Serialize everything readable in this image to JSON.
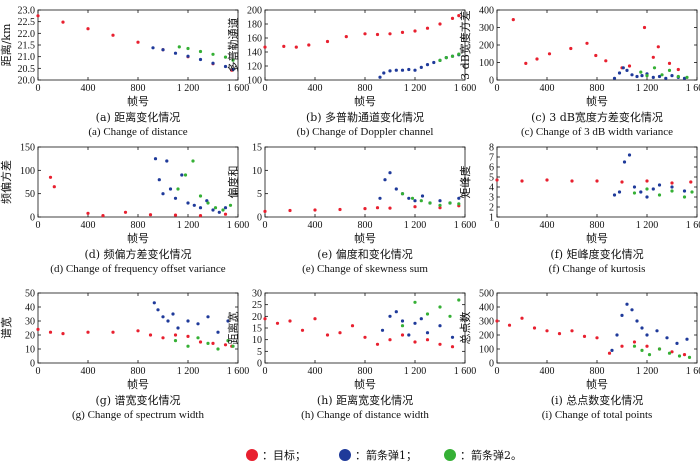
{
  "colors": {
    "target": "#e8202f",
    "rocket1": "#1f3a9a",
    "rocket2": "#35b035"
  },
  "legend": {
    "target": "：目标；",
    "rocket1": "：箭条弹1；",
    "rocket2": "：箭条弹2。"
  },
  "chart_data": [
    {
      "type": "scatter",
      "panel": "a",
      "ylabel": "距离/km",
      "xlabel": "帧号",
      "caption_cn": "(a) 距离变化情况",
      "caption_en": "(a) Change of distance",
      "xlim": [
        0,
        1600
      ],
      "xticks": [
        0,
        400,
        800,
        1200,
        1600
      ],
      "xticklabels": [
        "0",
        "400",
        "800",
        "1 200",
        "1 600"
      ],
      "ylim": [
        20,
        23
      ],
      "yticks": [
        20.0,
        20.5,
        21.0,
        21.5,
        22.0,
        22.5,
        23.0
      ],
      "yticklabels": [
        "20.0",
        "20.5",
        "21.0",
        "21.5",
        "22.0",
        "22.5",
        "23.0"
      ],
      "series": [
        {
          "key": "target",
          "x": [
            0,
            200,
            400,
            600,
            800,
            1000,
            1200,
            1400,
            1550
          ],
          "y": [
            22.75,
            22.48,
            22.2,
            21.92,
            21.62,
            21.3,
            21.0,
            20.7,
            20.42
          ]
        },
        {
          "key": "rocket1",
          "x": [
            920,
            1000,
            1100,
            1200,
            1300,
            1400,
            1500,
            1560
          ],
          "y": [
            21.38,
            21.3,
            21.15,
            21.02,
            20.88,
            20.72,
            20.58,
            20.45
          ]
        },
        {
          "key": "rocket2",
          "x": [
            1130,
            1200,
            1300,
            1400,
            1500,
            1560
          ],
          "y": [
            21.42,
            21.35,
            21.22,
            21.1,
            20.98,
            20.85
          ]
        }
      ]
    },
    {
      "type": "scatter",
      "panel": "b",
      "ylabel": "多普勒通道",
      "xlabel": "帧号",
      "caption_cn": "(b) 多普勒通道变化情况",
      "caption_en": "(b) Change of Doppler channel",
      "xlim": [
        0,
        1600
      ],
      "xticks": [
        0,
        400,
        800,
        1200,
        1600
      ],
      "xticklabels": [
        "0",
        "400",
        "800",
        "1 200",
        "1 600"
      ],
      "ylim": [
        100,
        200
      ],
      "yticks": [
        100,
        120,
        140,
        160,
        180,
        200
      ],
      "yticklabels": [
        "100",
        "120",
        "140",
        "160",
        "180",
        "200"
      ],
      "series": [
        {
          "key": "target",
          "x": [
            0,
            150,
            250,
            350,
            500,
            650,
            800,
            900,
            1000,
            1100,
            1200,
            1300,
            1400,
            1500,
            1550
          ],
          "y": [
            147,
            148,
            147,
            150,
            155,
            162,
            166,
            165,
            166,
            168,
            170,
            174,
            180,
            188,
            192
          ]
        },
        {
          "key": "rocket1",
          "x": [
            920,
            950,
            1000,
            1050,
            1100,
            1150,
            1200,
            1250,
            1300,
            1350,
            1400,
            1450,
            1500,
            1550
          ],
          "y": [
            104,
            110,
            113,
            114,
            114,
            115,
            114,
            118,
            122,
            125,
            128,
            132,
            134,
            136
          ]
        },
        {
          "key": "rocket2",
          "x": [
            1400,
            1450,
            1500,
            1550
          ],
          "y": [
            128,
            132,
            134,
            137
          ]
        }
      ]
    },
    {
      "type": "scatter",
      "panel": "c",
      "ylabel": "3 dB宽度方差",
      "xlabel": "帧号",
      "caption_cn": "(c) 3 dB宽度方差变化情况",
      "caption_en": "(c) Change of 3 dB width variance",
      "xlim": [
        0,
        1600
      ],
      "xticks": [
        0,
        400,
        800,
        1200,
        1600
      ],
      "xticklabels": [
        "0",
        "400",
        "800",
        "1 200",
        "1 600"
      ],
      "ylim": [
        0,
        400
      ],
      "yticks": [
        0,
        100,
        200,
        300,
        400
      ],
      "yticklabels": [
        "0",
        "100",
        "200",
        "300",
        "400"
      ],
      "series": [
        {
          "key": "target",
          "x": [
            130,
            230,
            320,
            420,
            590,
            720,
            790,
            870,
            1000,
            1060,
            1180,
            1250,
            1290,
            1380,
            1450
          ],
          "y": [
            345,
            95,
            120,
            150,
            180,
            210,
            140,
            110,
            70,
            80,
            300,
            130,
            190,
            95,
            60
          ]
        },
        {
          "key": "rocket1",
          "x": [
            940,
            980,
            1010,
            1040,
            1080,
            1120,
            1160,
            1200,
            1250,
            1300,
            1350,
            1400,
            1450,
            1500
          ],
          "y": [
            10,
            40,
            70,
            55,
            30,
            20,
            25,
            35,
            15,
            20,
            10,
            25,
            15,
            10
          ]
        },
        {
          "key": "rocket2",
          "x": [
            1150,
            1200,
            1260,
            1320,
            1380,
            1450,
            1520
          ],
          "y": [
            45,
            25,
            70,
            30,
            55,
            20,
            15
          ]
        }
      ]
    },
    {
      "type": "scatter",
      "panel": "d",
      "ylabel": "频偏方差",
      "xlabel": "帧号",
      "caption_cn": "(d) 频偏方差变化情况",
      "caption_en": "(d) Change of frequency offset variance",
      "xlim": [
        0,
        1600
      ],
      "xticks": [
        0,
        400,
        800,
        1200,
        1600
      ],
      "xticklabels": [
        "0",
        "400",
        "800",
        "1 200",
        "1 600"
      ],
      "ylim": [
        0,
        150
      ],
      "yticks": [
        0,
        50,
        100,
        150
      ],
      "yticklabels": [
        "0",
        "50",
        "100",
        "150"
      ],
      "series": [
        {
          "key": "target",
          "x": [
            100,
            130,
            400,
            520,
            700,
            900,
            1100,
            1300,
            1500
          ],
          "y": [
            85,
            65,
            8,
            3,
            10,
            5,
            4,
            3,
            6
          ]
        },
        {
          "key": "rocket1",
          "x": [
            940,
            970,
            1000,
            1030,
            1060,
            1100,
            1150,
            1200,
            1250,
            1300,
            1350,
            1400,
            1450,
            1500
          ],
          "y": [
            125,
            80,
            50,
            120,
            60,
            40,
            90,
            30,
            25,
            20,
            35,
            15,
            10,
            20
          ]
        },
        {
          "key": "rocket2",
          "x": [
            1120,
            1180,
            1240,
            1300,
            1360,
            1420,
            1480,
            1540
          ],
          "y": [
            60,
            90,
            120,
            45,
            30,
            20,
            15,
            25
          ]
        }
      ]
    },
    {
      "type": "scatter",
      "panel": "e",
      "ylabel": "偏度和",
      "xlabel": "帧号",
      "caption_cn": "(e) 偏度和变化情况",
      "caption_en": "(e) Change of skewness sum",
      "xlim": [
        0,
        1600
      ],
      "xticks": [
        0,
        400,
        800,
        1200,
        1600
      ],
      "xticklabels": [
        "0",
        "400",
        "800",
        "1 200",
        "1 600"
      ],
      "ylim": [
        0,
        15
      ],
      "yticks": [
        0,
        5,
        10,
        15
      ],
      "yticklabels": [
        "0",
        "5",
        "10",
        "15"
      ],
      "series": [
        {
          "key": "target",
          "x": [
            0,
            200,
            400,
            600,
            800,
            900,
            1000,
            1200,
            1400,
            1550
          ],
          "y": [
            1.2,
            1.4,
            1.5,
            1.6,
            1.8,
            2.0,
            1.9,
            2.2,
            2.0,
            2.4
          ]
        },
        {
          "key": "rocket1",
          "x": [
            920,
            960,
            1000,
            1050,
            1100,
            1150,
            1200,
            1260,
            1320,
            1400,
            1480,
            1550
          ],
          "y": [
            4,
            8,
            9.5,
            6,
            5,
            4,
            3.5,
            4.5,
            3,
            3.5,
            3,
            4
          ]
        },
        {
          "key": "rocket2",
          "x": [
            1100,
            1180,
            1250,
            1320,
            1400,
            1480,
            1550
          ],
          "y": [
            5,
            4,
            3.5,
            3,
            2.5,
            3,
            2.8
          ]
        }
      ]
    },
    {
      "type": "scatter",
      "panel": "f",
      "ylabel": "矩峰度",
      "xlabel": "帧号",
      "caption_cn": "(f) 矩峰度变化情况",
      "caption_en": "(f) Change of kurtosis",
      "xlim": [
        0,
        1600
      ],
      "xticks": [
        0,
        400,
        800,
        1200,
        1600
      ],
      "xticklabels": [
        "0",
        "400",
        "800",
        "1 200",
        "1 600"
      ],
      "ylim": [
        1,
        8
      ],
      "yticks": [
        1,
        2,
        3,
        4,
        5,
        6,
        7,
        8
      ],
      "yticklabels": [
        "1",
        "2",
        "3",
        "4",
        "5",
        "6",
        "7",
        "8"
      ],
      "series": [
        {
          "key": "target",
          "x": [
            0,
            200,
            400,
            600,
            800,
            1000,
            1200,
            1400,
            1550
          ],
          "y": [
            4.7,
            4.6,
            4.7,
            4.6,
            4.6,
            4.5,
            4.6,
            4.4,
            4.5
          ]
        },
        {
          "key": "rocket1",
          "x": [
            940,
            980,
            1020,
            1060,
            1100,
            1150,
            1200,
            1250,
            1300,
            1400,
            1500
          ],
          "y": [
            3.2,
            3.5,
            6.5,
            7.2,
            4.0,
            3.5,
            3.0,
            3.8,
            4.2,
            4.0,
            3.6
          ]
        },
        {
          "key": "rocket2",
          "x": [
            1100,
            1200,
            1300,
            1400,
            1500,
            1560
          ],
          "y": [
            3.4,
            3.8,
            3.2,
            3.6,
            3.0,
            3.5
          ]
        }
      ]
    },
    {
      "type": "scatter",
      "panel": "g",
      "ylabel": "谱宽",
      "xlabel": "帧号",
      "caption_cn": "(g) 谱宽变化情况",
      "caption_en": "(g) Change of spectrum width",
      "xlim": [
        0,
        1600
      ],
      "xticks": [
        0,
        400,
        800,
        1200,
        1600
      ],
      "xticklabels": [
        "0",
        "400",
        "800",
        "1 200",
        "1 600"
      ],
      "ylim": [
        0,
        50
      ],
      "yticks": [
        0,
        10,
        20,
        30,
        40,
        50
      ],
      "yticklabels": [
        "0",
        "10",
        "20",
        "30",
        "40",
        "50"
      ],
      "series": [
        {
          "key": "target",
          "x": [
            0,
            100,
            200,
            400,
            600,
            800,
            900,
            1000,
            1100,
            1200,
            1300,
            1400,
            1500,
            1550
          ],
          "y": [
            24,
            22,
            21,
            22,
            22,
            23,
            20,
            18,
            20,
            19,
            15,
            14,
            13,
            12
          ]
        },
        {
          "key": "rocket1",
          "x": [
            930,
            960,
            1000,
            1040,
            1080,
            1120,
            1200,
            1280,
            1360,
            1440,
            1520
          ],
          "y": [
            43,
            38,
            33,
            30,
            35,
            25,
            30,
            28,
            33,
            22,
            30
          ]
        },
        {
          "key": "rocket2",
          "x": [
            1100,
            1200,
            1280,
            1360,
            1440,
            1520,
            1560
          ],
          "y": [
            16,
            12,
            18,
            14,
            10,
            16,
            12
          ]
        }
      ]
    },
    {
      "type": "scatter",
      "panel": "h",
      "ylabel": "距离宽",
      "xlabel": "帧号",
      "caption_cn": "(h) 距离宽变化情况",
      "caption_en": "(h) Change of distance width",
      "xlim": [
        0,
        1600
      ],
      "xticks": [
        0,
        400,
        800,
        1200,
        1600
      ],
      "xticklabels": [
        "0",
        "400",
        "800",
        "1 200",
        "1 600"
      ],
      "ylim": [
        0,
        30
      ],
      "yticks": [
        0,
        5,
        10,
        15,
        20,
        25,
        30
      ],
      "yticklabels": [
        "0",
        "5",
        "10",
        "15",
        "20",
        "25",
        "30"
      ],
      "series": [
        {
          "key": "target",
          "x": [
            0,
            100,
            200,
            300,
            400,
            500,
            600,
            700,
            800,
            900,
            1000,
            1100,
            1200,
            1300,
            1400,
            1500
          ],
          "y": [
            19,
            17,
            18,
            14,
            19,
            12,
            13,
            16,
            11,
            8,
            10,
            12,
            9,
            10,
            8,
            7
          ]
        },
        {
          "key": "rocket1",
          "x": [
            940,
            1000,
            1050,
            1100,
            1150,
            1200,
            1250,
            1300,
            1400,
            1500
          ],
          "y": [
            14,
            20,
            22,
            18,
            12,
            17,
            19,
            13,
            16,
            11
          ]
        },
        {
          "key": "rocket2",
          "x": [
            1100,
            1200,
            1300,
            1400,
            1480,
            1550
          ],
          "y": [
            16,
            26,
            21,
            24,
            20,
            27
          ]
        }
      ]
    },
    {
      "type": "scatter",
      "panel": "i",
      "ylabel": "总点数",
      "xlabel": "帧号",
      "caption_cn": "(i) 总点数变化情况",
      "caption_en": "(i) Change of total points",
      "xlim": [
        0,
        1600
      ],
      "xticks": [
        0,
        400,
        800,
        1200,
        1600
      ],
      "xticklabels": [
        "0",
        "400",
        "800",
        "1 200",
        "1 600"
      ],
      "ylim": [
        0,
        500
      ],
      "yticks": [
        0,
        100,
        200,
        300,
        400,
        500
      ],
      "yticklabels": [
        "0",
        "100",
        "200",
        "300",
        "400",
        "500"
      ],
      "series": [
        {
          "key": "target",
          "x": [
            0,
            100,
            200,
            300,
            400,
            500,
            600,
            700,
            800,
            900,
            1000,
            1100,
            1200,
            1300,
            1400,
            1500
          ],
          "y": [
            300,
            270,
            320,
            250,
            230,
            210,
            230,
            190,
            180,
            70,
            120,
            150,
            120,
            100,
            80,
            60
          ]
        },
        {
          "key": "rocket1",
          "x": [
            920,
            960,
            1000,
            1040,
            1080,
            1120,
            1160,
            1200,
            1280,
            1360,
            1440,
            1520
          ],
          "y": [
            90,
            200,
            340,
            420,
            380,
            300,
            250,
            200,
            230,
            180,
            140,
            170
          ]
        },
        {
          "key": "rocket2",
          "x": [
            1100,
            1160,
            1220,
            1300,
            1380,
            1460,
            1540
          ],
          "y": [
            120,
            90,
            60,
            100,
            70,
            50,
            40
          ]
        }
      ]
    }
  ]
}
